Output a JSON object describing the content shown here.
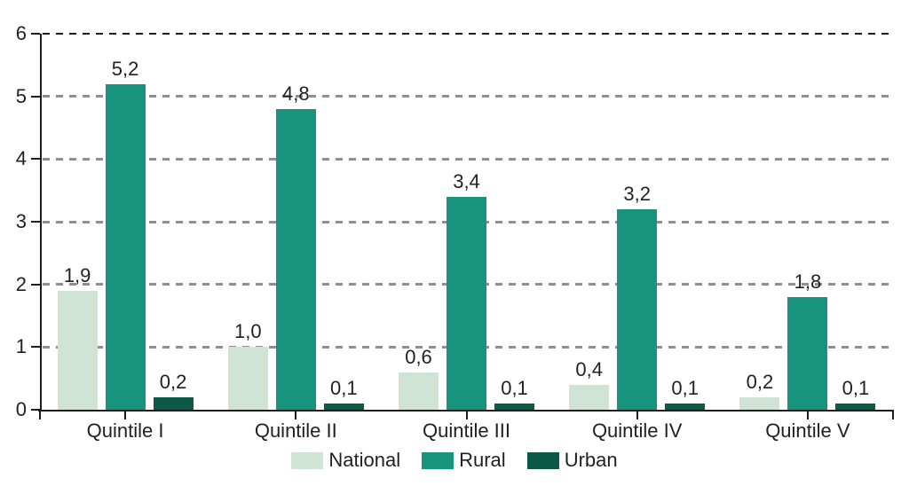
{
  "chart_data": {
    "type": "bar",
    "title": "",
    "categories": [
      "Quintile I",
      "Quintile II",
      "Quintile III",
      "Quintile IV",
      "Quintile V"
    ],
    "series": [
      {
        "name": "National",
        "color": "#d0e4d5",
        "values": [
          1.9,
          1.0,
          0.6,
          0.4,
          0.2
        ],
        "labels": [
          "1,9",
          "1,0",
          "0,6",
          "0,4",
          "0,2"
        ]
      },
      {
        "name": "Rural",
        "color": "#18947e",
        "values": [
          5.2,
          4.8,
          3.4,
          3.2,
          1.8
        ],
        "labels": [
          "5,2",
          "4,8",
          "3,4",
          "3,2",
          "1,8"
        ]
      },
      {
        "name": "Urban",
        "color": "#0c5948",
        "values": [
          0.2,
          0.1,
          0.1,
          0.1,
          0.1
        ],
        "labels": [
          "0,2",
          "0,1",
          "0,1",
          "0,1",
          "0,1"
        ]
      }
    ],
    "ylim": [
      0,
      6
    ],
    "yticks": [
      0,
      1,
      2,
      3,
      4,
      5,
      6
    ],
    "ytick_labels": [
      "0",
      "1",
      "2",
      "3",
      "4",
      "5",
      "6"
    ],
    "decimal_separator": ",",
    "grid": "horizontal-dashed",
    "gridline_color": "#8f8f8f",
    "top_gridline_color": "#1d1d1b",
    "axis_color": "#1d1d1b",
    "text_color": "#231f20",
    "background": "#ffffff",
    "legend_position": "bottom",
    "legend_items": [
      "National",
      "Rural",
      "Urban"
    ]
  }
}
